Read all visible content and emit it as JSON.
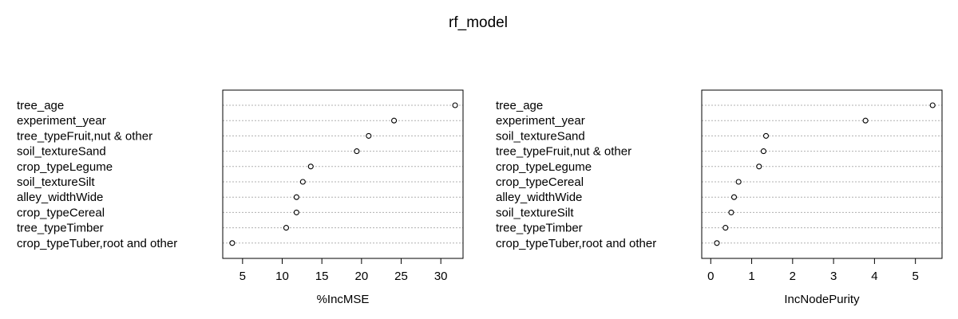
{
  "title": "rf_model",
  "chart_data": [
    {
      "type": "scatter",
      "variant": "dotchart",
      "categories": [
        "tree_age",
        "experiment_year",
        "tree_typeFruit,nut & other",
        "soil_textureSand",
        "crop_typeLegume",
        "soil_textureSilt",
        "alley_widthWide",
        "crop_typeCereal",
        "tree_typeTimber",
        "crop_typeTuber,root and other"
      ],
      "values": [
        31.8,
        24.1,
        20.9,
        19.4,
        13.6,
        12.6,
        11.8,
        11.8,
        10.5,
        3.7
      ],
      "xlabel": "%IncMSE",
      "ylabel": "",
      "xticks": [
        5,
        10,
        15,
        20,
        25,
        30
      ],
      "xlim": [
        2.5,
        32.8
      ],
      "grid": "dotted horizontal",
      "legend": "none"
    },
    {
      "type": "scatter",
      "variant": "dotchart",
      "categories": [
        "tree_age",
        "experiment_year",
        "soil_textureSand",
        "tree_typeFruit,nut & other",
        "crop_typeLegume",
        "crop_typeCereal",
        "alley_widthWide",
        "soil_textureSilt",
        "tree_typeTimber",
        "crop_typeTuber,root and other"
      ],
      "values": [
        5.42,
        3.78,
        1.35,
        1.29,
        1.18,
        0.68,
        0.57,
        0.5,
        0.36,
        0.15
      ],
      "xlabel": "IncNodePurity",
      "ylabel": "",
      "xticks": [
        0,
        1,
        2,
        3,
        4,
        5
      ],
      "xlim": [
        -0.22,
        5.65
      ],
      "grid": "dotted horizontal",
      "legend": "none"
    }
  ]
}
